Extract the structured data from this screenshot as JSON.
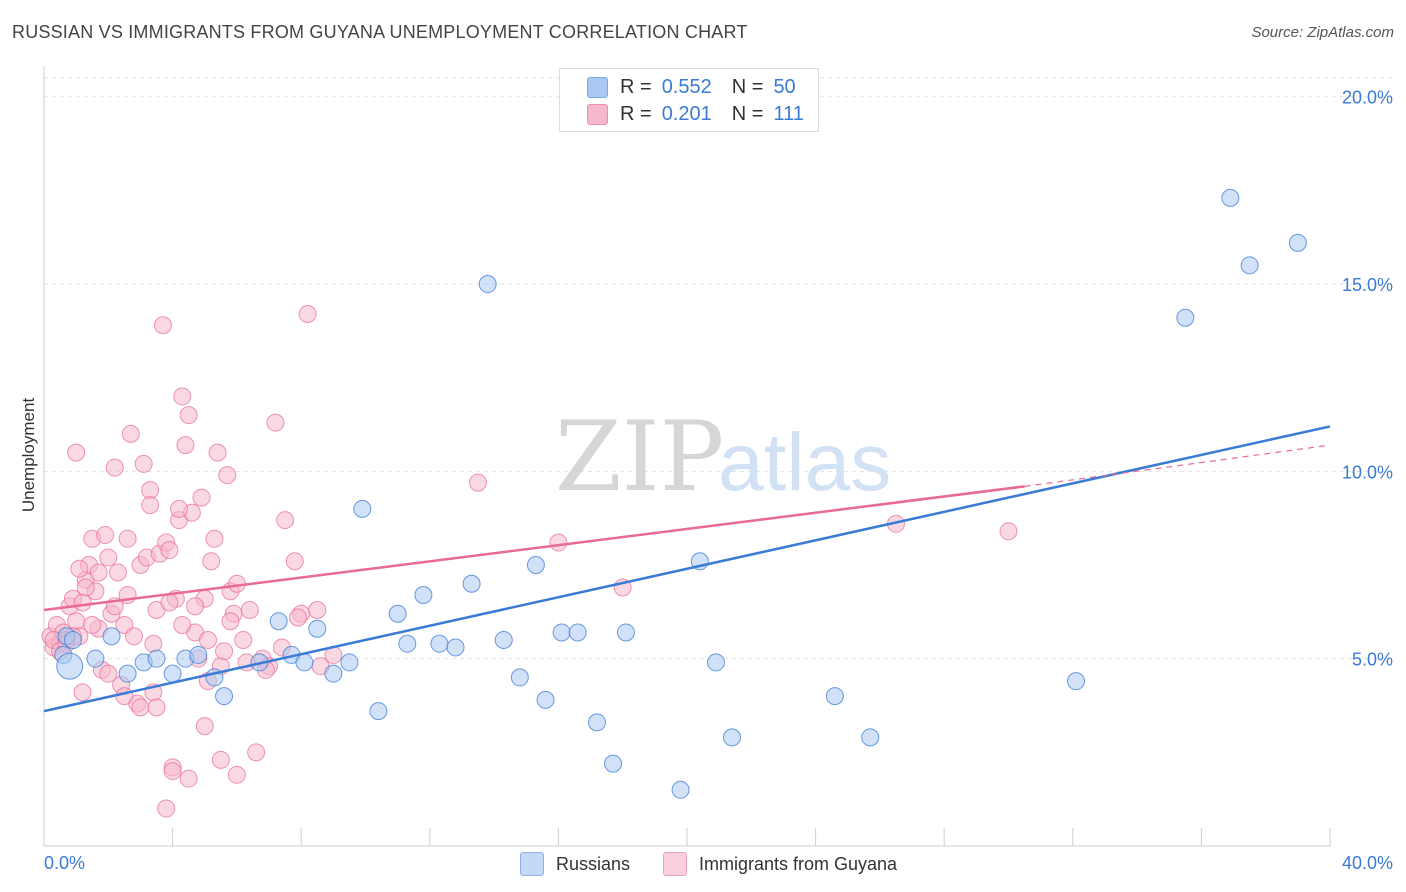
{
  "header": {
    "title": "RUSSIAN VS IMMIGRANTS FROM GUYANA UNEMPLOYMENT CORRELATION CHART",
    "source": "Source: ZipAtlas.com"
  },
  "legend_top": {
    "rows": [
      {
        "r_label": "R =",
        "r_value": "0.552",
        "n_label": "N =",
        "n_value": "50",
        "color": "#a9c8f2"
      },
      {
        "r_label": "R =",
        "r_value": "0.201",
        "n_label": "N =",
        "n_value": "111",
        "color": "#f6b8cb"
      }
    ]
  },
  "legend_bottom": {
    "items": [
      {
        "label": "Russians",
        "color": "#a9c8f2"
      },
      {
        "label": "Immigrants from Guyana",
        "color": "#f6b8cb"
      }
    ]
  },
  "watermark": {
    "part1": "ZIP",
    "part2": "atlas"
  },
  "chart_data": {
    "type": "scatter",
    "title": "RUSSIAN VS IMMIGRANTS FROM GUYANA UNEMPLOYMENT CORRELATION CHART",
    "xlabel": "",
    "ylabel": "Unemployment",
    "xlim": [
      0,
      40
    ],
    "ylim": [
      0,
      20.5
    ],
    "x_tick_labels": [
      "0.0%",
      "40.0%"
    ],
    "y_ticks": [
      5,
      10,
      15,
      20
    ],
    "y_tick_labels": [
      "5.0%",
      "10.0%",
      "15.0%",
      "20.0%"
    ],
    "grid": true,
    "colors": {
      "russians": "#3a7bd5",
      "russians_fill": "#a9c8f2",
      "guyana": "#e86a96",
      "guyana_fill": "#f6b8cb",
      "tick_label": "#3a7bd5"
    },
    "series": [
      {
        "name": "Russians",
        "trendline": {
          "x": [
            0,
            40
          ],
          "y": [
            3.6,
            11.2
          ]
        },
        "points": [
          [
            0.7,
            5.6
          ],
          [
            0.6,
            5.1
          ],
          [
            0.8,
            4.8
          ],
          [
            1.6,
            5.0
          ],
          [
            2.1,
            5.6
          ],
          [
            2.6,
            4.6
          ],
          [
            3.1,
            4.9
          ],
          [
            3.5,
            5.0
          ],
          [
            4.0,
            4.6
          ],
          [
            4.4,
            5.0
          ],
          [
            4.8,
            5.1
          ],
          [
            5.3,
            4.5
          ],
          [
            5.6,
            4.0
          ],
          [
            6.7,
            4.9
          ],
          [
            7.3,
            6.0
          ],
          [
            7.7,
            5.1
          ],
          [
            8.1,
            4.9
          ],
          [
            8.5,
            5.8
          ],
          [
            9.0,
            4.6
          ],
          [
            9.5,
            4.9
          ],
          [
            9.9,
            9.0
          ],
          [
            10.4,
            3.6
          ],
          [
            11.0,
            6.2
          ],
          [
            11.3,
            5.4
          ],
          [
            11.8,
            6.7
          ],
          [
            12.3,
            5.4
          ],
          [
            12.8,
            5.3
          ],
          [
            13.3,
            7.0
          ],
          [
            13.8,
            15.0
          ],
          [
            14.3,
            5.5
          ],
          [
            14.8,
            4.5
          ],
          [
            15.3,
            7.5
          ],
          [
            15.6,
            3.9
          ],
          [
            16.1,
            5.7
          ],
          [
            16.6,
            5.7
          ],
          [
            17.2,
            3.3
          ],
          [
            17.7,
            2.2
          ],
          [
            18.1,
            5.7
          ],
          [
            19.8,
            1.5
          ],
          [
            20.4,
            7.6
          ],
          [
            20.9,
            4.9
          ],
          [
            21.4,
            2.9
          ],
          [
            24.6,
            4.0
          ],
          [
            25.7,
            2.9
          ],
          [
            32.1,
            4.4
          ],
          [
            35.5,
            14.1
          ],
          [
            36.9,
            17.3
          ],
          [
            37.5,
            15.5
          ],
          [
            39.0,
            16.1
          ],
          [
            0.9,
            5.5
          ]
        ]
      },
      {
        "name": "Immigrants from Guyana",
        "trendline": {
          "x": [
            0,
            30.5
          ],
          "y": [
            6.3,
            9.6
          ]
        },
        "trend_extension": {
          "x": [
            30.5,
            40
          ],
          "y": [
            9.6,
            10.7
          ]
        },
        "points": [
          [
            0.2,
            5.6
          ],
          [
            0.3,
            5.3
          ],
          [
            0.4,
            5.9
          ],
          [
            0.5,
            5.4
          ],
          [
            0.6,
            5.7
          ],
          [
            0.7,
            5.5
          ],
          [
            0.8,
            6.4
          ],
          [
            0.9,
            6.6
          ],
          [
            1.0,
            6.0
          ],
          [
            1.1,
            5.6
          ],
          [
            1.2,
            6.5
          ],
          [
            1.3,
            7.1
          ],
          [
            1.4,
            7.5
          ],
          [
            1.5,
            8.2
          ],
          [
            1.6,
            6.8
          ],
          [
            1.7,
            5.8
          ],
          [
            1.8,
            4.7
          ],
          [
            1.9,
            8.3
          ],
          [
            2.0,
            7.7
          ],
          [
            2.1,
            6.2
          ],
          [
            2.2,
            10.1
          ],
          [
            2.3,
            7.3
          ],
          [
            2.4,
            4.3
          ],
          [
            2.5,
            5.9
          ],
          [
            2.6,
            8.2
          ],
          [
            2.7,
            11.0
          ],
          [
            2.8,
            5.6
          ],
          [
            2.9,
            3.8
          ],
          [
            3.0,
            7.5
          ],
          [
            3.1,
            10.2
          ],
          [
            3.2,
            7.7
          ],
          [
            3.3,
            9.5
          ],
          [
            3.4,
            4.1
          ],
          [
            3.5,
            6.3
          ],
          [
            3.6,
            7.8
          ],
          [
            3.7,
            13.9
          ],
          [
            3.8,
            8.1
          ],
          [
            3.9,
            7.9
          ],
          [
            4.0,
            2.1
          ],
          [
            4.1,
            6.6
          ],
          [
            4.2,
            8.7
          ],
          [
            4.3,
            12.0
          ],
          [
            4.4,
            10.7
          ],
          [
            4.5,
            11.5
          ],
          [
            4.6,
            8.9
          ],
          [
            4.7,
            5.7
          ],
          [
            4.8,
            5.0
          ],
          [
            4.9,
            9.3
          ],
          [
            5.0,
            6.6
          ],
          [
            5.1,
            5.5
          ],
          [
            5.2,
            7.6
          ],
          [
            5.3,
            8.2
          ],
          [
            5.4,
            10.5
          ],
          [
            5.5,
            4.8
          ],
          [
            5.6,
            5.2
          ],
          [
            5.7,
            9.9
          ],
          [
            5.8,
            6.8
          ],
          [
            5.9,
            6.2
          ],
          [
            6.0,
            7.0
          ],
          [
            6.2,
            5.5
          ],
          [
            6.4,
            6.3
          ],
          [
            6.6,
            2.5
          ],
          [
            6.8,
            5.0
          ],
          [
            7.0,
            4.8
          ],
          [
            7.2,
            11.3
          ],
          [
            7.5,
            8.7
          ],
          [
            7.8,
            7.6
          ],
          [
            8.0,
            6.2
          ],
          [
            8.2,
            14.2
          ],
          [
            8.5,
            6.3
          ],
          [
            9.0,
            5.1
          ],
          [
            1.0,
            10.5
          ],
          [
            1.2,
            4.1
          ],
          [
            1.5,
            5.9
          ],
          [
            2.0,
            4.6
          ],
          [
            2.5,
            4.0
          ],
          [
            3.0,
            3.7
          ],
          [
            3.5,
            3.7
          ],
          [
            4.0,
            2.0
          ],
          [
            4.5,
            1.8
          ],
          [
            5.0,
            3.2
          ],
          [
            5.5,
            2.3
          ],
          [
            6.0,
            1.9
          ],
          [
            3.8,
            1.0
          ],
          [
            4.2,
            9.0
          ],
          [
            3.3,
            9.1
          ],
          [
            13.5,
            9.7
          ],
          [
            16.0,
            8.1
          ],
          [
            18.0,
            6.9
          ],
          [
            26.5,
            8.6
          ],
          [
            30.0,
            8.4
          ],
          [
            0.3,
            5.5
          ],
          [
            0.5,
            5.2
          ],
          [
            0.7,
            5.4
          ],
          [
            0.9,
            5.6
          ],
          [
            1.1,
            7.4
          ],
          [
            1.3,
            6.9
          ],
          [
            1.7,
            7.3
          ],
          [
            2.2,
            6.4
          ],
          [
            2.6,
            6.7
          ],
          [
            3.4,
            5.4
          ],
          [
            3.9,
            6.5
          ],
          [
            4.3,
            5.9
          ],
          [
            4.7,
            6.4
          ],
          [
            5.1,
            4.4
          ],
          [
            5.8,
            6.0
          ],
          [
            6.3,
            4.9
          ],
          [
            6.9,
            4.7
          ],
          [
            7.4,
            5.3
          ],
          [
            7.9,
            6.1
          ],
          [
            8.6,
            4.8
          ]
        ]
      }
    ]
  }
}
